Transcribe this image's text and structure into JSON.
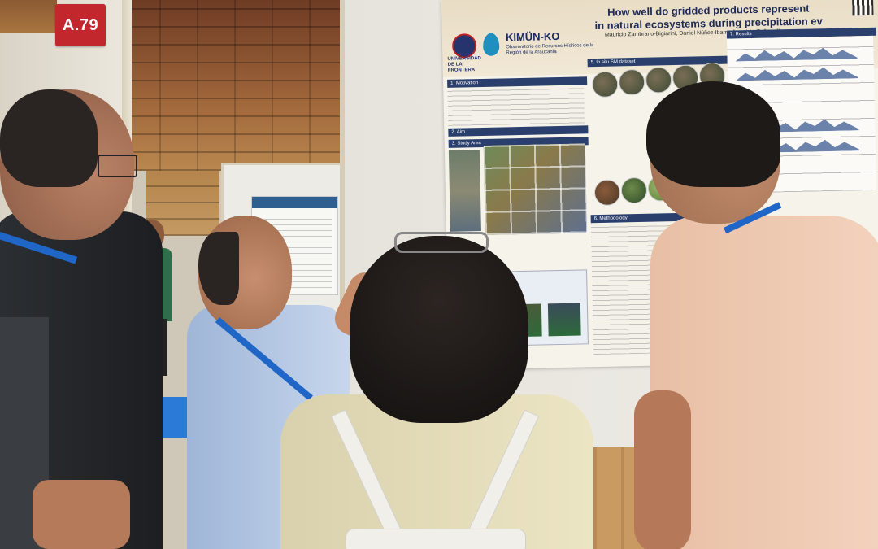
{
  "booth": {
    "number": "A.79"
  },
  "poster": {
    "title_line1": "How well do gridded products represent",
    "title_line2": "in natural ecosystems during precipitation ev",
    "authors": "Mauricio Zambrano-Bigiarini, Daniel Núñez-Ibarra, Mauricio Galleguillos",
    "logo_name": "KIMÜN-KO",
    "logo_subtitle": "Observatorio de Recursos Hídricos de la Región de la Araucanía",
    "university": "UNIVERSIDAD DE LA FRONTERA",
    "sections": {
      "motivation": "1. Motivation",
      "aim": "2. Aim",
      "study_area": "3. Study Area",
      "in_situ": "5. In situ SM dataset",
      "methodology": "6. Methodology",
      "results": "7. Results"
    }
  },
  "colors": {
    "booth_sign": "#c1272d",
    "lanyard": "#1f66c7",
    "poster_section_header": "#2a3f6c"
  }
}
